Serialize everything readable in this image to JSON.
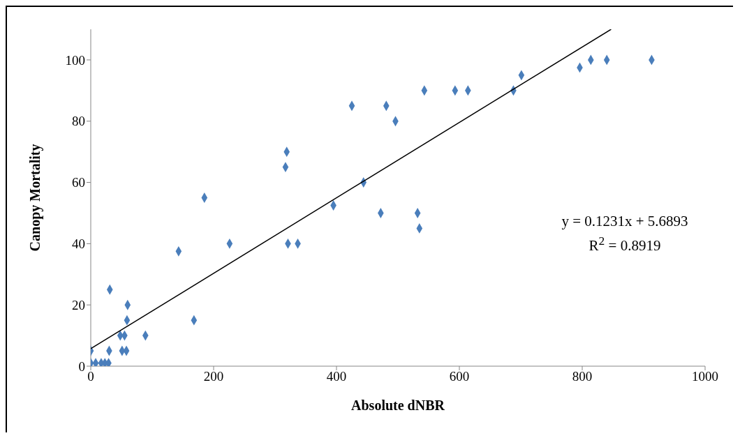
{
  "chart_data": {
    "type": "scatter",
    "xlabel": "Absolute dNBR",
    "ylabel": "Canopy Mortality",
    "xlim": [
      0,
      1000
    ],
    "xticks": [
      0,
      200,
      400,
      600,
      800,
      1000
    ],
    "ylim": [
      0,
      110
    ],
    "yticks": [
      0,
      20,
      40,
      60,
      80,
      100
    ],
    "marker": "diamond",
    "annotations": [
      "y = 0.1231x + 5.6893",
      "R$^{2}$ = 0.8919"
    ],
    "series": [
      {
        "color": "#4a7ebb",
        "x": [
          0,
          0,
          8,
          17,
          23,
          29,
          30,
          31,
          48,
          51,
          55,
          58,
          59,
          60,
          89,
          143,
          168,
          185,
          226,
          317,
          319,
          321,
          337,
          395,
          444,
          425,
          472,
          481,
          496,
          532,
          535,
          543,
          593,
          614,
          688,
          701,
          796,
          814,
          840,
          913
        ],
        "values": [
          5,
          1,
          1,
          1,
          1,
          1,
          5,
          25,
          10,
          5,
          10,
          5,
          15,
          20,
          10,
          37.5,
          15,
          55,
          40,
          65,
          70,
          40,
          40,
          52.5,
          60,
          85,
          50,
          85,
          80,
          50,
          45,
          90,
          90,
          90,
          90,
          95,
          97.5,
          100,
          100,
          100
        ]
      },
      {
        "type": "line",
        "color": "#000000",
        "marker": "none",
        "x": [
          0,
          847
        ],
        "values": [
          5.7,
          110
        ]
      }
    ]
  }
}
